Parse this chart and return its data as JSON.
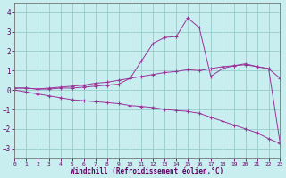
{
  "xlabel": "Windchill (Refroidissement éolien,°C)",
  "bg_color": "#c8eef0",
  "grid_color": "#99cccc",
  "line_color": "#993399",
  "xlim": [
    0,
    23
  ],
  "ylim": [
    -3.5,
    4.5
  ],
  "yticks": [
    -3,
    -2,
    -1,
    0,
    1,
    2,
    3,
    4
  ],
  "xticks": [
    0,
    1,
    2,
    3,
    4,
    5,
    6,
    7,
    8,
    9,
    10,
    11,
    12,
    13,
    14,
    15,
    16,
    17,
    18,
    19,
    20,
    21,
    22,
    23
  ],
  "series1_x": [
    0,
    1,
    2,
    3,
    4,
    5,
    6,
    7,
    8,
    9,
    10,
    11,
    12,
    13,
    14,
    15,
    16,
    17,
    18,
    19,
    20,
    21,
    22,
    23
  ],
  "series1_y": [
    0.1,
    0.1,
    0.05,
    0.1,
    0.15,
    0.2,
    0.25,
    0.35,
    0.4,
    0.5,
    0.6,
    0.7,
    0.8,
    0.9,
    0.95,
    1.05,
    1.0,
    1.1,
    1.2,
    1.25,
    1.3,
    1.2,
    1.1,
    0.6
  ],
  "series2_x": [
    0,
    1,
    2,
    3,
    4,
    5,
    6,
    7,
    8,
    9,
    10,
    11,
    12,
    13,
    14,
    15,
    16,
    17,
    18,
    19,
    20,
    21,
    22,
    23
  ],
  "series2_y": [
    0.1,
    0.1,
    0.05,
    0.05,
    0.1,
    0.1,
    0.15,
    0.2,
    0.25,
    0.3,
    0.6,
    1.5,
    2.4,
    2.7,
    2.75,
    3.7,
    3.2,
    0.7,
    1.1,
    1.25,
    1.35,
    1.2,
    1.1,
    -2.75
  ],
  "series3_x": [
    0,
    1,
    2,
    3,
    4,
    5,
    6,
    7,
    8,
    9,
    10,
    11,
    12,
    13,
    14,
    15,
    16,
    17,
    18,
    19,
    20,
    21,
    22,
    23
  ],
  "series3_y": [
    0.0,
    -0.1,
    -0.2,
    -0.3,
    -0.4,
    -0.5,
    -0.55,
    -0.6,
    -0.65,
    -0.7,
    -0.8,
    -0.85,
    -0.9,
    -1.0,
    -1.05,
    -1.1,
    -1.2,
    -1.4,
    -1.6,
    -1.8,
    -2.0,
    -2.2,
    -2.5,
    -2.75
  ]
}
